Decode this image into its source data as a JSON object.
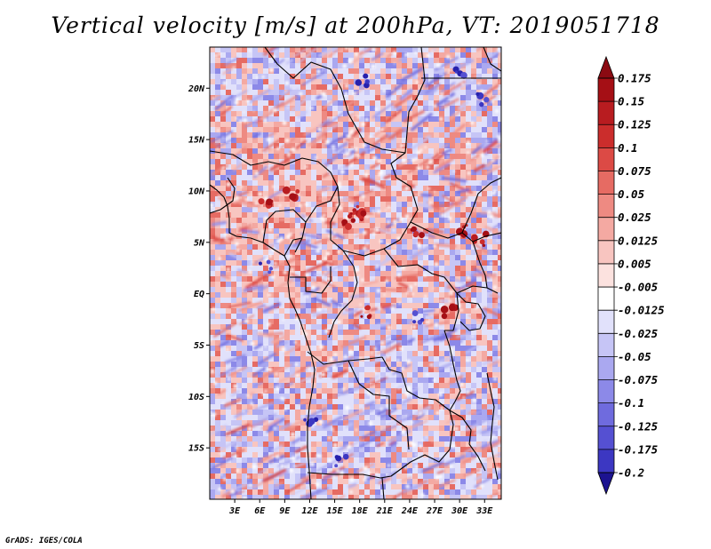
{
  "title": "Vertical velocity [m/s] at 200hPa, VT: 2019051718",
  "credit": "GrADS: IGES/COLA",
  "map": {
    "variable": "Vertical velocity",
    "units": "m/s",
    "level": "200hPa",
    "valid_time": "2019051718",
    "lat_range": [
      -20,
      24
    ],
    "lon_range": [
      0,
      35
    ],
    "lat_labels": [
      {
        "lat": 20,
        "label": "20N"
      },
      {
        "lat": 15,
        "label": "15N"
      },
      {
        "lat": 10,
        "label": "10N"
      },
      {
        "lat": 5,
        "label": "5N"
      },
      {
        "lat": 0,
        "label": "EQ"
      },
      {
        "lat": -5,
        "label": "5S"
      },
      {
        "lat": -10,
        "label": "10S"
      },
      {
        "lat": -15,
        "label": "15S"
      }
    ],
    "lon_labels": [
      {
        "lon": 3,
        "label": "3E"
      },
      {
        "lon": 6,
        "label": "6E"
      },
      {
        "lon": 9,
        "label": "9E"
      },
      {
        "lon": 12,
        "label": "12E"
      },
      {
        "lon": 15,
        "label": "15E"
      },
      {
        "lon": 18,
        "label": "18E"
      },
      {
        "lon": 21,
        "label": "21E"
      },
      {
        "lon": 24,
        "label": "24E"
      },
      {
        "lon": 27,
        "label": "27E"
      },
      {
        "lon": 30,
        "label": "30E"
      },
      {
        "lon": 33,
        "label": "33E"
      }
    ]
  },
  "colorbar": {
    "levels": [
      {
        "label": "0.175",
        "color": "#a50f15"
      },
      {
        "label": "0.15",
        "color": "#b81c20"
      },
      {
        "label": "0.125",
        "color": "#cb2d2c"
      },
      {
        "label": "0.1",
        "color": "#dc4a45"
      },
      {
        "label": "0.075",
        "color": "#e66b63"
      },
      {
        "label": "0.05",
        "color": "#ee8a82"
      },
      {
        "label": "0.025",
        "color": "#f4a9a2"
      },
      {
        "label": "0.0125",
        "color": "#f8c5c0"
      },
      {
        "label": "0.005",
        "color": "#fce2df"
      },
      {
        "label": "-0.005",
        "color": "#ffffff"
      },
      {
        "label": "-0.0125",
        "color": "#e1e1fb"
      },
      {
        "label": "-0.025",
        "color": "#c6c5f6"
      },
      {
        "label": "-0.05",
        "color": "#aaa8f0"
      },
      {
        "label": "-0.075",
        "color": "#8c89e8"
      },
      {
        "label": "-0.1",
        "color": "#6f6bde"
      },
      {
        "label": "-0.125",
        "color": "#5550d2"
      },
      {
        "label": "-0.175",
        "color": "#3c37c2"
      },
      {
        "label": "-0.2",
        "color": "#2621ad"
      }
    ],
    "top_arrow_color": "#8b0a12",
    "bottom_arrow_color": "#1c1390"
  }
}
